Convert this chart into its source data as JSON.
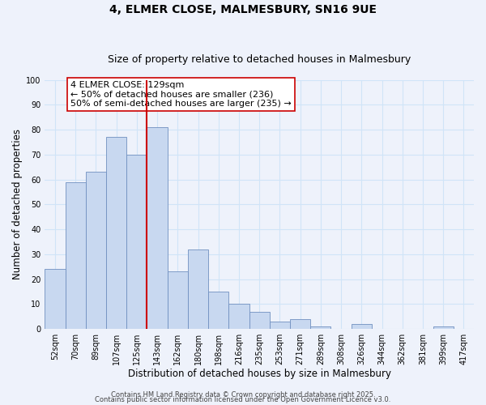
{
  "title_line1": "4, ELMER CLOSE, MALMESBURY, SN16 9UE",
  "title_line2": "Size of property relative to detached houses in Malmesbury",
  "xlabel": "Distribution of detached houses by size in Malmesbury",
  "ylabel": "Number of detached properties",
  "bar_labels": [
    "52sqm",
    "70sqm",
    "89sqm",
    "107sqm",
    "125sqm",
    "143sqm",
    "162sqm",
    "180sqm",
    "198sqm",
    "216sqm",
    "235sqm",
    "253sqm",
    "271sqm",
    "289sqm",
    "308sqm",
    "326sqm",
    "344sqm",
    "362sqm",
    "381sqm",
    "399sqm",
    "417sqm"
  ],
  "bar_values": [
    24,
    59,
    63,
    77,
    70,
    81,
    23,
    32,
    15,
    10,
    7,
    3,
    4,
    1,
    0,
    2,
    0,
    0,
    0,
    1,
    0
  ],
  "bar_color": "#c8d8f0",
  "bar_edgecolor": "#7090c0",
  "vline_x_index": 4,
  "vline_color": "#cc0000",
  "annotation_title": "4 ELMER CLOSE: 129sqm",
  "annotation_line1": "← 50% of detached houses are smaller (236)",
  "annotation_line2": "50% of semi-detached houses are larger (235) →",
  "annotation_box_edgecolor": "#cc0000",
  "annotation_box_facecolor": "#ffffff",
  "ylim": [
    0,
    100
  ],
  "yticks": [
    0,
    10,
    20,
    30,
    40,
    50,
    60,
    70,
    80,
    90,
    100
  ],
  "grid_color": "#d0e4f8",
  "background_color": "#eef2fb",
  "footer_line1": "Contains HM Land Registry data © Crown copyright and database right 2025.",
  "footer_line2": "Contains public sector information licensed under the Open Government Licence v3.0.",
  "title_fontsize": 10,
  "subtitle_fontsize": 9,
  "axis_label_fontsize": 8.5,
  "tick_fontsize": 7,
  "annotation_fontsize": 8,
  "footer_fontsize": 6
}
